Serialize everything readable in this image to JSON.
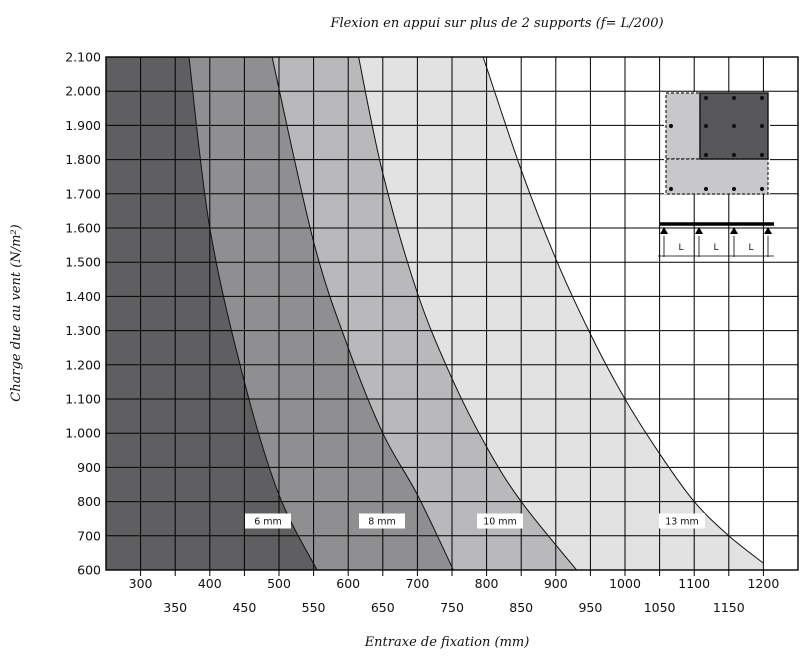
{
  "chart_data": {
    "type": "area",
    "title": "Flexion en appui sur plus de 2 supports (f= L/200)",
    "xlabel": "Entraxe de fixation (mm)",
    "ylabel": "Charge due au vent (N/m²)",
    "xlim": [
      250,
      1250
    ],
    "ylim": [
      600,
      2100
    ],
    "x_tick_labels_upper": [
      "300",
      "400",
      "500",
      "600",
      "700",
      "800",
      "900",
      "1000",
      "1100",
      "1200"
    ],
    "x_tick_labels_lower": [
      "350",
      "450",
      "550",
      "650",
      "750",
      "850",
      "950",
      "1050",
      "1150"
    ],
    "y_tick_labels": [
      "600",
      "700",
      "800",
      "900",
      "1.000",
      "1.100",
      "1.200",
      "1.300",
      "1.400",
      "1.500",
      "1.600",
      "1.700",
      "1.800",
      "1.900",
      "2.000",
      "2.100"
    ],
    "y_tick_values": [
      600,
      700,
      800,
      900,
      1000,
      1100,
      1200,
      1300,
      1400,
      1500,
      1600,
      1700,
      1800,
      1900,
      2000,
      2100
    ],
    "grid": true,
    "series": [
      {
        "name": "6 mm",
        "color": "#6c6c6e",
        "x": [
          370,
          400,
          450,
          500,
          555
        ],
        "y": [
          2100,
          1600,
          1150,
          820,
          600
        ]
      },
      {
        "name": "8 mm",
        "color": "#8f8f91",
        "x": [
          490,
          550,
          600,
          650,
          700,
          752
        ],
        "y": [
          2100,
          1560,
          1250,
          1000,
          820,
          600
        ]
      },
      {
        "name": "10 mm",
        "color": "#b9b9bb",
        "x": [
          615,
          650,
          700,
          750,
          800,
          850,
          930
        ],
        "y": [
          2100,
          1760,
          1410,
          1160,
          960,
          800,
          600
        ]
      },
      {
        "name": "13 mm",
        "color": "#e2e2e3",
        "x": [
          795,
          850,
          900,
          950,
          1000,
          1050,
          1100,
          1150,
          1200
        ],
        "y": [
          2100,
          1770,
          1510,
          1290,
          1100,
          940,
          800,
          700,
          620
        ]
      }
    ],
    "left_fill_color": "#5f5f61",
    "legend": "labels inside bands, bottom",
    "inset": {
      "span_labels": [
        "L",
        "L",
        "L"
      ]
    }
  }
}
